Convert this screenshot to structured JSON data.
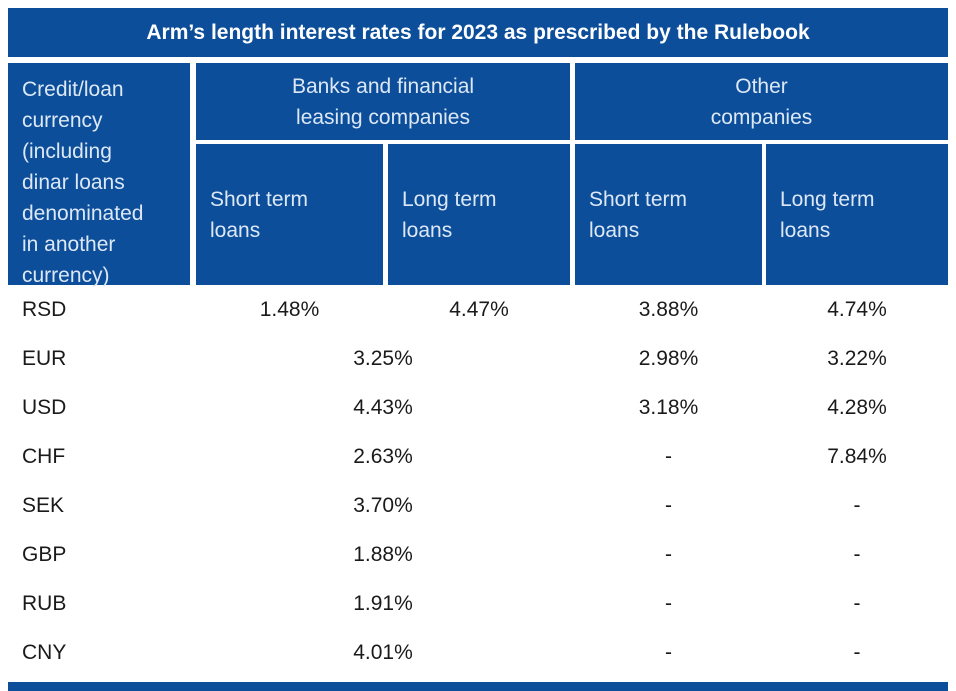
{
  "colors": {
    "table_blue": "#0d4e9a",
    "title_text": "#ffffff",
    "header_text": "#dce8f6",
    "body_text": "#1a1a1a",
    "background": "#ffffff"
  },
  "chart_data": {
    "type": "table",
    "title": "Arm’s length interest rates for 2023 as prescribed by the Rulebook",
    "row_header": "Credit/loan\ncurrency\n(including\ndinar loans\ndenominated\nin another\ncurrency)",
    "column_groups": [
      {
        "label": "Banks and financial\nleasing companies",
        "columns": [
          "Short term\nloans",
          "Long term\nloans"
        ]
      },
      {
        "label": "Other\ncompanies",
        "columns": [
          "Short term\nloans",
          "Long term\nloans"
        ]
      }
    ],
    "rows": [
      {
        "currency": "RSD",
        "cells": [
          {
            "span": "banks-short",
            "value": "1.48%"
          },
          {
            "span": "banks-long",
            "value": "4.47%"
          },
          {
            "span": "other-short",
            "value": "3.88%"
          },
          {
            "span": "other-long",
            "value": "4.74%"
          }
        ]
      },
      {
        "currency": "EUR",
        "cells": [
          {
            "span": "banks-merged",
            "value": "3.25%"
          },
          {
            "span": "other-short",
            "value": "2.98%"
          },
          {
            "span": "other-long",
            "value": "3.22%"
          }
        ]
      },
      {
        "currency": "USD",
        "cells": [
          {
            "span": "banks-merged",
            "value": "4.43%"
          },
          {
            "span": "other-short",
            "value": "3.18%"
          },
          {
            "span": "other-long",
            "value": "4.28%"
          }
        ]
      },
      {
        "currency": "CHF",
        "cells": [
          {
            "span": "banks-merged",
            "value": "2.63%"
          },
          {
            "span": "other-short",
            "value": "-"
          },
          {
            "span": "other-long",
            "value": "7.84%"
          }
        ]
      },
      {
        "currency": "SEK",
        "cells": [
          {
            "span": "banks-merged",
            "value": "3.70%"
          },
          {
            "span": "other-short",
            "value": "-"
          },
          {
            "span": "other-long",
            "value": "-"
          }
        ]
      },
      {
        "currency": "GBP",
        "cells": [
          {
            "span": "banks-merged",
            "value": "1.88%"
          },
          {
            "span": "other-short",
            "value": "-"
          },
          {
            "span": "other-long",
            "value": "-"
          }
        ]
      },
      {
        "currency": "RUB",
        "cells": [
          {
            "span": "banks-merged",
            "value": "1.91%"
          },
          {
            "span": "other-short",
            "value": "-"
          },
          {
            "span": "other-long",
            "value": "-"
          }
        ]
      },
      {
        "currency": "CNY",
        "cells": [
          {
            "span": "banks-merged",
            "value": "4.01%"
          },
          {
            "span": "other-short",
            "value": "-"
          },
          {
            "span": "other-long",
            "value": "-"
          }
        ]
      }
    ]
  }
}
